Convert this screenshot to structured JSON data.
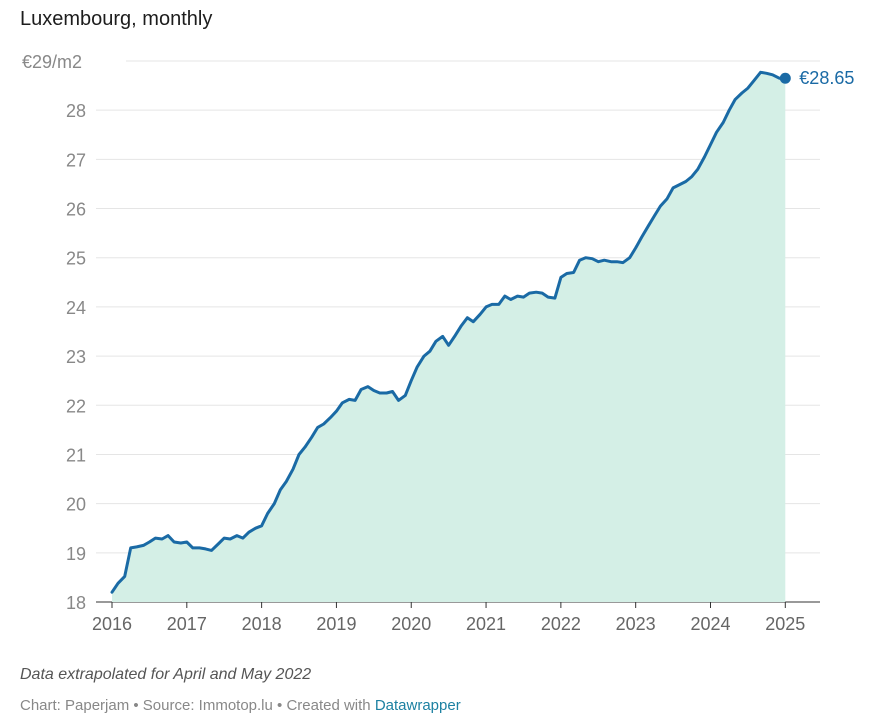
{
  "header": {
    "title": "Luxembourg, monthly"
  },
  "notes": {
    "extrapolation": "Data extrapolated for April and May 2022",
    "credits_prefix": "Chart: Paperjam • Source: Immotop.lu • Created with ",
    "credits_link": "Datawrapper"
  },
  "colors": {
    "line": "#1a6aa5",
    "area": "#d4efe6",
    "grid": "#e5e5e5",
    "axis_text": "#888888"
  },
  "chart_data": {
    "type": "area",
    "title": "Luxembourg, monthly",
    "xlabel": "",
    "ylabel": "",
    "unit_label": "€29/m2",
    "ylim": [
      18,
      29
    ],
    "xlim": [
      2016,
      2025.25
    ],
    "yticks": [
      {
        "value": 29,
        "label": "€29/m2"
      },
      {
        "value": 28,
        "label": "28"
      },
      {
        "value": 27,
        "label": "27"
      },
      {
        "value": 26,
        "label": "26"
      },
      {
        "value": 25,
        "label": "25"
      },
      {
        "value": 24,
        "label": "24"
      },
      {
        "value": 23,
        "label": "23"
      },
      {
        "value": 22,
        "label": "22"
      },
      {
        "value": 21,
        "label": "21"
      },
      {
        "value": 20,
        "label": "20"
      },
      {
        "value": 19,
        "label": "19"
      },
      {
        "value": 18,
        "label": "18"
      }
    ],
    "xticks": [
      "2016",
      "2017",
      "2018",
      "2019",
      "2020",
      "2021",
      "2022",
      "2023",
      "2024",
      "2025"
    ],
    "grid": true,
    "end_label": "€28.65",
    "series": [
      {
        "x": [
          2016.0,
          2016.08,
          2016.17,
          2016.25,
          2016.33,
          2016.42,
          2016.5,
          2016.58,
          2016.67,
          2016.75,
          2016.83,
          2016.92,
          2017.0,
          2017.08,
          2017.17,
          2017.25,
          2017.33,
          2017.42,
          2017.5,
          2017.58,
          2017.67,
          2017.75,
          2017.83,
          2017.92,
          2018.0,
          2018.08,
          2018.17,
          2018.25,
          2018.33,
          2018.42,
          2018.5,
          2018.58,
          2018.67,
          2018.75,
          2018.83,
          2018.92,
          2019.0,
          2019.08,
          2019.17,
          2019.25,
          2019.33,
          2019.42,
          2019.5,
          2019.58,
          2019.67,
          2019.75,
          2019.83,
          2019.92,
          2020.0,
          2020.08,
          2020.17,
          2020.25,
          2020.33,
          2020.42,
          2020.5,
          2020.58,
          2020.67,
          2020.75,
          2020.83,
          2020.92,
          2021.0,
          2021.08,
          2021.17,
          2021.25,
          2021.33,
          2021.42,
          2021.5,
          2021.58,
          2021.67,
          2021.75,
          2021.83,
          2021.92,
          2022.0,
          2022.08,
          2022.17,
          2022.25,
          2022.33,
          2022.42,
          2022.5,
          2022.58,
          2022.67,
          2022.75,
          2022.83,
          2022.92,
          2023.0,
          2023.08,
          2023.17,
          2023.25,
          2023.33,
          2023.42,
          2023.5,
          2023.58,
          2023.67,
          2023.75,
          2023.83,
          2023.92,
          2024.0,
          2024.08,
          2024.17,
          2024.25,
          2024.33,
          2024.42,
          2024.5,
          2024.58,
          2024.67,
          2024.75,
          2024.83,
          2024.92,
          2025.0
        ],
        "values": [
          18.2,
          18.38,
          18.52,
          19.1,
          19.12,
          19.15,
          19.22,
          19.3,
          19.28,
          19.35,
          19.22,
          19.2,
          19.22,
          19.1,
          19.1,
          19.08,
          19.05,
          19.18,
          19.3,
          19.28,
          19.35,
          19.3,
          19.42,
          19.5,
          19.55,
          19.8,
          20.0,
          20.28,
          20.45,
          20.7,
          21.0,
          21.15,
          21.35,
          21.55,
          21.62,
          21.75,
          21.88,
          22.05,
          22.12,
          22.1,
          22.32,
          22.38,
          22.3,
          22.25,
          22.25,
          22.28,
          22.1,
          22.2,
          22.5,
          22.78,
          23.0,
          23.1,
          23.3,
          23.4,
          23.22,
          23.4,
          23.62,
          23.78,
          23.7,
          23.85,
          24.0,
          24.05,
          24.05,
          24.22,
          24.15,
          24.22,
          24.2,
          24.28,
          24.3,
          24.28,
          24.2,
          24.18,
          24.6,
          24.68,
          24.7,
          24.95,
          25.0,
          24.98,
          24.92,
          24.95,
          24.92,
          24.92,
          24.9,
          25.0,
          25.2,
          25.42,
          25.65,
          25.85,
          26.05,
          26.2,
          26.42,
          26.48,
          26.55,
          26.65,
          26.8,
          27.05,
          27.3,
          27.55,
          27.75,
          28.0,
          28.22,
          28.35,
          28.45,
          28.6,
          28.77,
          28.75,
          28.72,
          28.65,
          28.65
        ]
      }
    ]
  }
}
